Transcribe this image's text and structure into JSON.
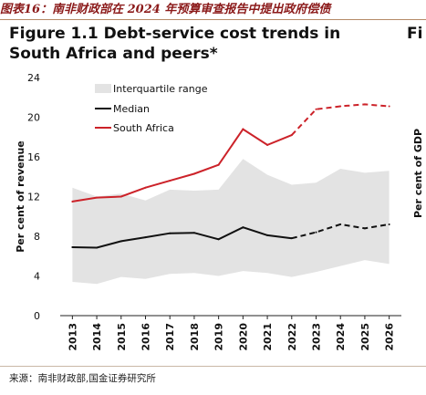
{
  "caption": "图表16：南非财政部在 2024 年预算审查报告中提出政府偿债",
  "source": "来源：南非财政部,国金证券研究所",
  "chart_data": {
    "type": "line",
    "title": "Figure 1.1 Debt-service cost trends in South Africa and peers*",
    "next_title_fragment": "Fi",
    "right_axis_fragment": "Per cent of GDP",
    "ylabel": "Per cent of revenue",
    "xlabel": "",
    "ylim": [
      0,
      24
    ],
    "yticks": [
      0,
      4,
      8,
      12,
      16,
      20,
      24
    ],
    "x": [
      "2013",
      "2014",
      "2015",
      "2016",
      "2017",
      "2018",
      "2019",
      "2020",
      "2021",
      "2022",
      "2023",
      "2024",
      "2025",
      "2026"
    ],
    "projection_start": "2022",
    "legend_position": "top-left",
    "grid": false,
    "series": [
      {
        "name": "Interquartile range",
        "type": "band",
        "upper": [
          12.9,
          12.0,
          12.3,
          11.6,
          12.7,
          12.6,
          12.7,
          15.8,
          14.2,
          13.2,
          13.4,
          14.8,
          14.4,
          14.6
        ],
        "lower": [
          3.4,
          3.2,
          3.9,
          3.7,
          4.2,
          4.3,
          4.0,
          4.5,
          4.3,
          3.9,
          4.4,
          5.0,
          5.6,
          5.2
        ],
        "color": "#e3e3e3"
      },
      {
        "name": "Median",
        "type": "line",
        "values": [
          6.9,
          6.85,
          7.5,
          7.9,
          8.3,
          8.35,
          7.7,
          8.9,
          8.1,
          7.8,
          8.4,
          9.2,
          8.8,
          9.2
        ],
        "color": "#111111"
      },
      {
        "name": "South Africa",
        "type": "line",
        "values": [
          11.5,
          11.9,
          12.0,
          12.9,
          13.6,
          14.3,
          15.2,
          18.8,
          17.2,
          18.2,
          20.8,
          21.1,
          21.3,
          21.1
        ],
        "color": "#cc2229"
      }
    ]
  }
}
